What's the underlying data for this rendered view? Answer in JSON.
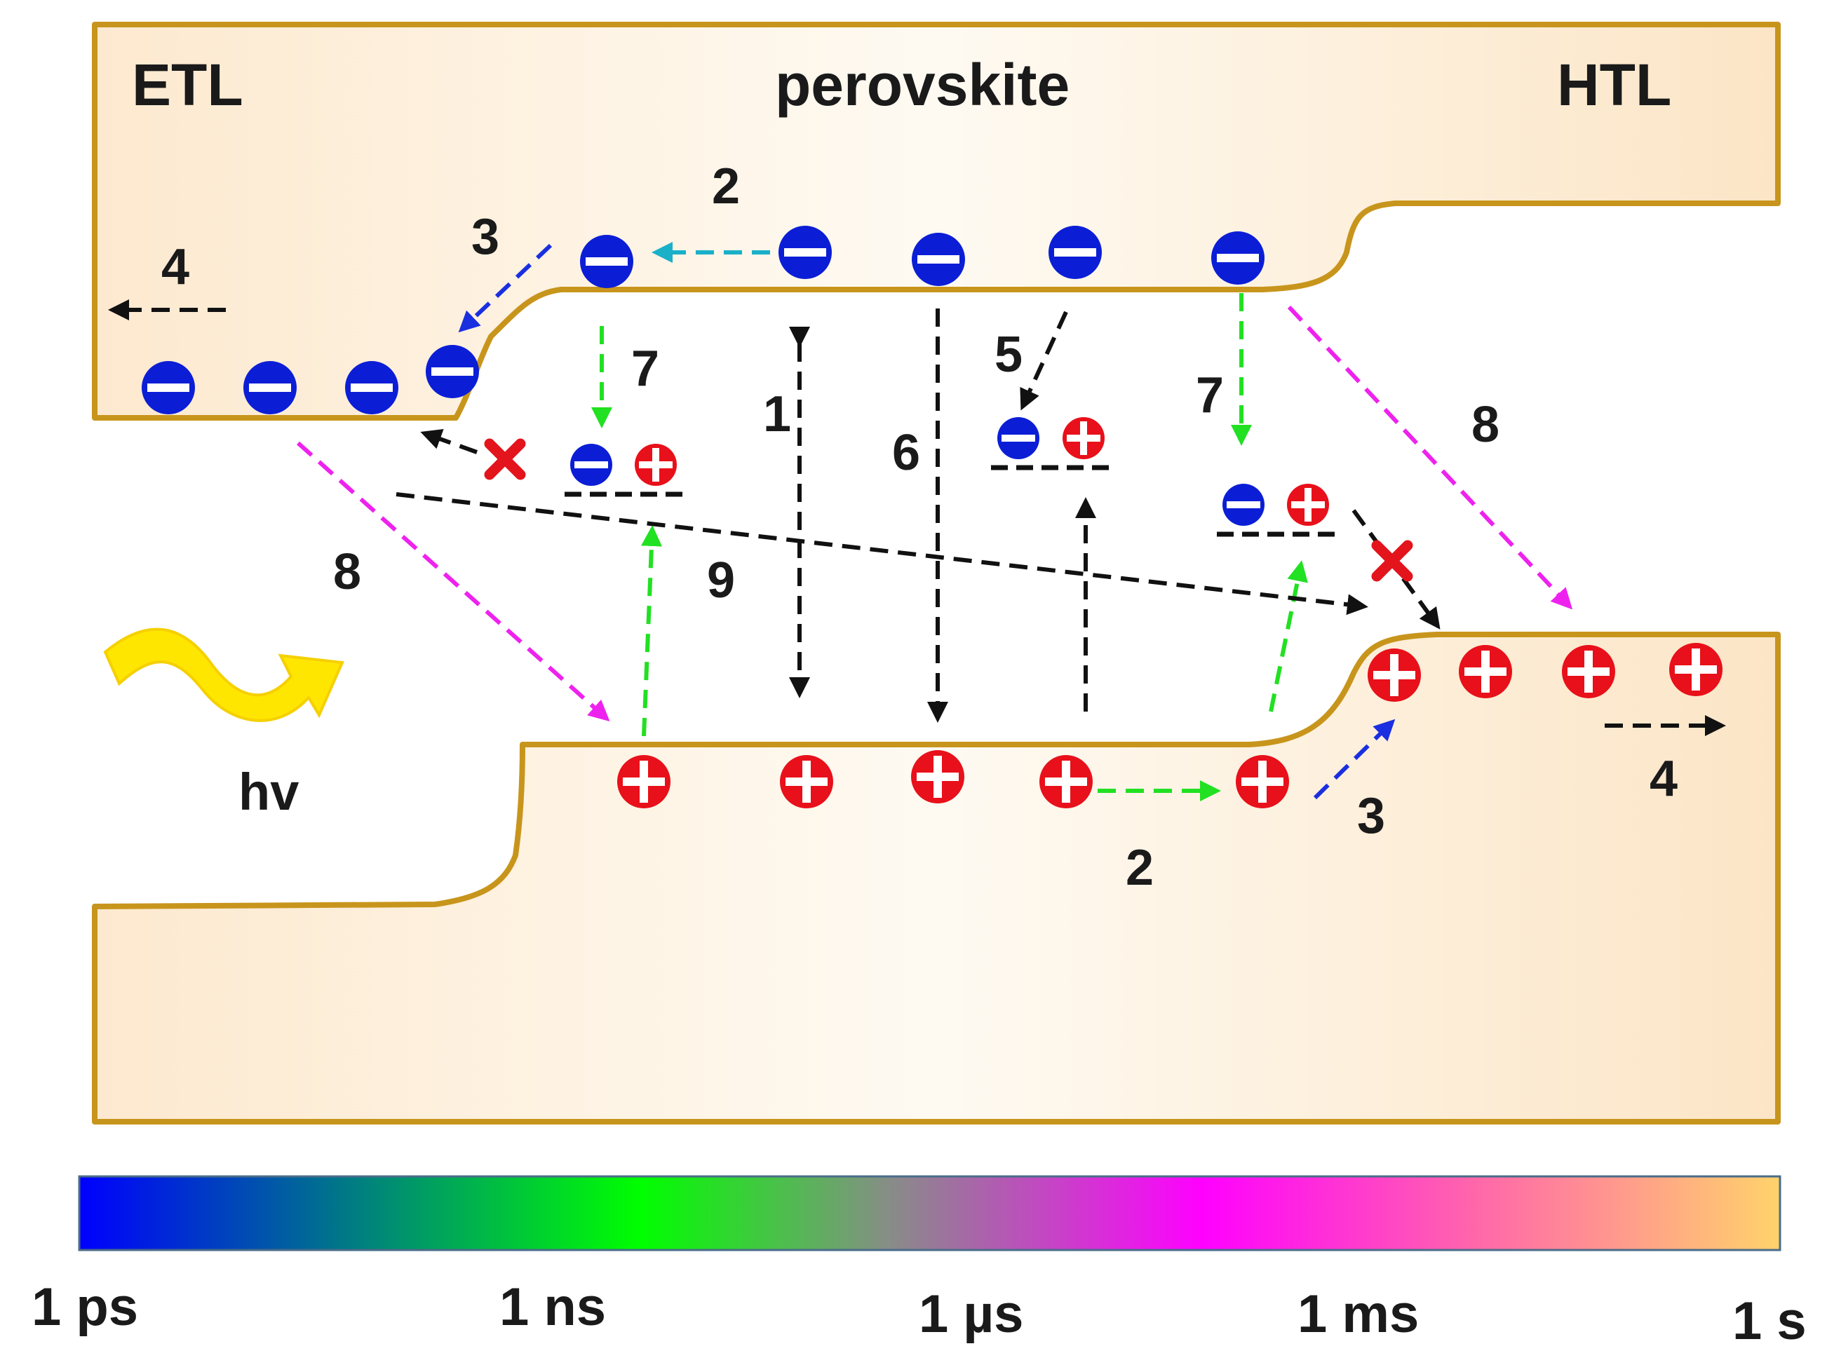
{
  "regions": {
    "etl": "ETL",
    "perovskite": "perovskite",
    "htl": "HTL"
  },
  "light": {
    "label": "hv",
    "icon": "wavy-light-arrow-icon"
  },
  "process_numbers": [
    "1",
    "2",
    "2",
    "3",
    "3",
    "4",
    "4",
    "5",
    "6",
    "7",
    "7",
    "8",
    "8",
    "9"
  ],
  "timescale": {
    "ticks": [
      "1 ps",
      "1 ns",
      "1 µs",
      "1 ms",
      "1 s"
    ],
    "gradient_colors": [
      "#0000ff",
      "#00ff00",
      "#8a8a8a",
      "#ff00ff",
      "#ffd36b"
    ]
  },
  "colors": {
    "layer_fill": "#fdebd2",
    "layer_edge": "#c8951c",
    "electron": "#0b1ed6",
    "hole": "#e8101a",
    "blue_arrow": "#1a2fe0",
    "cyan_arrow": "#1ab0c8",
    "green_arrow": "#22e022",
    "magenta_arrow": "#ee22ee",
    "black_arrow": "#111111",
    "cross": "#e3141c"
  }
}
